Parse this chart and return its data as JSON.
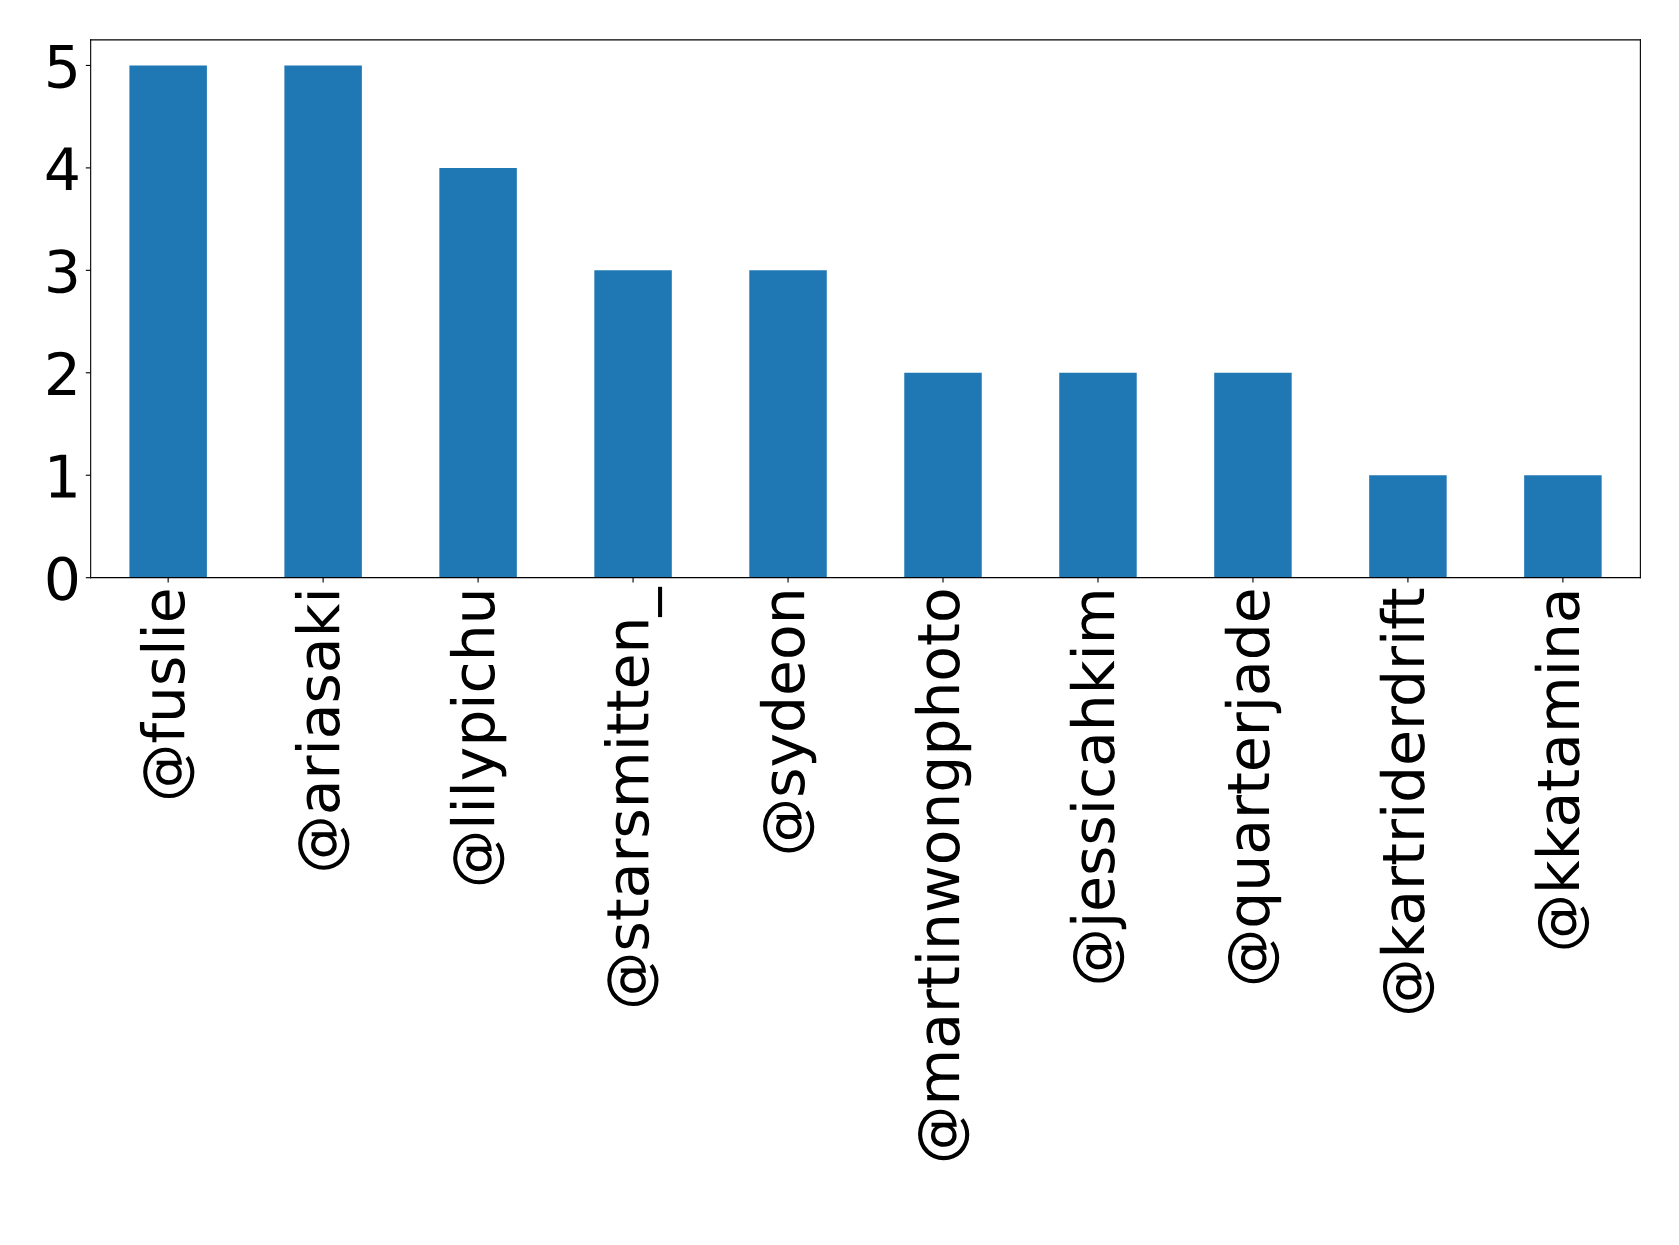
{
  "chart_data": {
    "type": "bar",
    "categories": [
      "@fuslie",
      "@ariasaki",
      "@lilypichu",
      "@starsmitten_",
      "@sydeon",
      "@martinwongphoto",
      "@jessicahkim",
      "@quarterjade",
      "@kartriderdrift",
      "@kkatamina"
    ],
    "values": [
      5,
      5,
      4,
      3,
      3,
      2,
      2,
      2,
      1,
      1
    ],
    "color": "#1f77b4",
    "ylim": [
      0,
      5.25
    ],
    "yticks": [
      0,
      1,
      2,
      3,
      4,
      5
    ],
    "grid": false,
    "legend": false
  }
}
